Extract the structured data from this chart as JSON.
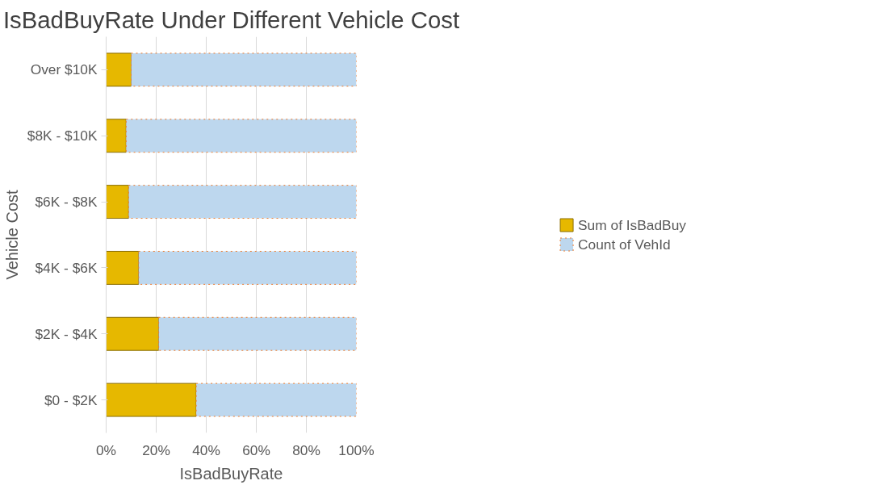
{
  "chart_data": {
    "type": "bar",
    "orientation": "horizontal",
    "stacked": true,
    "title": "IsBadBuyRate Under Different Vehicle Cost",
    "xlabel": "IsBadBuyRate",
    "ylabel": "Vehicle Cost",
    "categories": [
      "Over $10K",
      "$8K - $10K",
      "$6K - $8K",
      "$4K - $6K",
      "$2K - $4K",
      "$0 - $2K"
    ],
    "series": [
      {
        "name": "Sum of IsBadBuy",
        "color": "#e6b800",
        "values": [
          10,
          8,
          9,
          13,
          21,
          36
        ]
      },
      {
        "name": "Count of VehId",
        "color": "#bdd7ee",
        "values": [
          90,
          92,
          91,
          87,
          79,
          64
        ]
      }
    ],
    "xlim": [
      0,
      100
    ],
    "xticks": [
      {
        "value": 0,
        "label": "0%"
      },
      {
        "value": 20,
        "label": "20%"
      },
      {
        "value": 40,
        "label": "40%"
      },
      {
        "value": 60,
        "label": "60%"
      },
      {
        "value": 80,
        "label": "80%"
      },
      {
        "value": 100,
        "label": "100%"
      }
    ],
    "grid": "x",
    "legend": "right"
  }
}
